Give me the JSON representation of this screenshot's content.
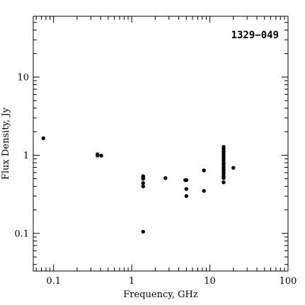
{
  "chart_data": {
    "type": "scatter",
    "title": "1329−049",
    "xlabel": "Frequency, GHz",
    "ylabel": "Flux Density, Jy",
    "xscale": "log",
    "yscale": "log",
    "xlim": [
      0.055,
      100
    ],
    "ylim": [
      0.033,
      60
    ],
    "grid": false,
    "x_ticks": [
      {
        "value": 0.1,
        "label": "0.1"
      },
      {
        "value": 1,
        "label": "1"
      },
      {
        "value": 10,
        "label": "10"
      },
      {
        "value": 100,
        "label": "100"
      }
    ],
    "y_ticks": [
      {
        "value": 0.1,
        "label": "0.1"
      },
      {
        "value": 1,
        "label": "1"
      },
      {
        "value": 10,
        "label": "10"
      }
    ],
    "points": [
      {
        "x": 0.074,
        "y": 1.65
      },
      {
        "x": 0.365,
        "y": 1.01,
        "yerr": 0.06
      },
      {
        "x": 0.408,
        "y": 0.99
      },
      {
        "x": 1.4,
        "y": 0.54
      },
      {
        "x": 1.4,
        "y": 0.52
      },
      {
        "x": 1.4,
        "y": 0.5
      },
      {
        "x": 1.4,
        "y": 0.44
      },
      {
        "x": 1.4,
        "y": 0.4
      },
      {
        "x": 1.4,
        "y": 0.105
      },
      {
        "x": 2.7,
        "y": 0.51
      },
      {
        "x": 4.85,
        "y": 0.48
      },
      {
        "x": 5.0,
        "y": 0.48
      },
      {
        "x": 5.0,
        "y": 0.37
      },
      {
        "x": 5.0,
        "y": 0.3
      },
      {
        "x": 8.4,
        "y": 0.64
      },
      {
        "x": 8.4,
        "y": 0.35
      },
      {
        "x": 15.0,
        "y": 1.28
      },
      {
        "x": 15.0,
        "y": 1.2
      },
      {
        "x": 15.0,
        "y": 1.12
      },
      {
        "x": 15.0,
        "y": 1.05
      },
      {
        "x": 15.0,
        "y": 0.98
      },
      {
        "x": 15.0,
        "y": 0.92
      },
      {
        "x": 15.0,
        "y": 0.86
      },
      {
        "x": 15.0,
        "y": 0.8
      },
      {
        "x": 15.0,
        "y": 0.75
      },
      {
        "x": 15.0,
        "y": 0.7
      },
      {
        "x": 15.0,
        "y": 0.66
      },
      {
        "x": 15.0,
        "y": 0.62
      },
      {
        "x": 15.0,
        "y": 0.58
      },
      {
        "x": 15.0,
        "y": 0.54
      },
      {
        "x": 15.0,
        "y": 0.51
      },
      {
        "x": 15.0,
        "y": 0.45
      },
      {
        "x": 20.0,
        "y": 0.69
      }
    ]
  }
}
